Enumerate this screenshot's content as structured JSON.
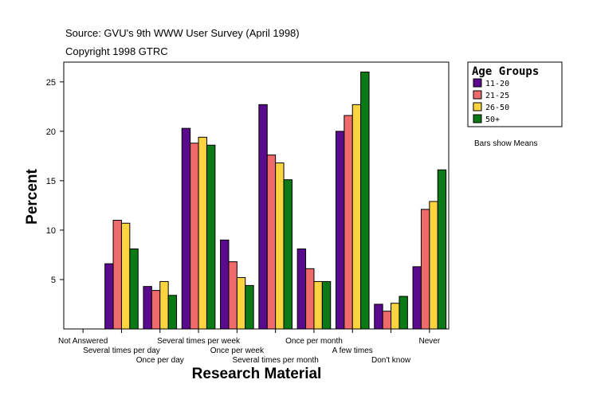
{
  "chart_data": {
    "type": "bar",
    "source_line": "Source: GVU's 9th WWW User Survey (April 1998)",
    "copyright_line": "Copyright 1998 GTRC",
    "xlabel": "Research Material",
    "ylabel": "Percent",
    "ylim": [
      0,
      27
    ],
    "yticks": [
      5,
      10,
      15,
      20,
      25
    ],
    "note": "Bars show Means",
    "legend_title": "Age Groups",
    "legend_position": "right",
    "categories": [
      "Not Answered",
      "Several times per day",
      "Once per day",
      "Several times per week",
      "Once per week",
      "Several times per month",
      "Once per month",
      "A few times",
      "Don't know",
      "Never"
    ],
    "series": [
      {
        "name": "11-20",
        "color": "#5a0a8c",
        "values": [
          0,
          6.6,
          4.3,
          20.3,
          9.0,
          22.7,
          8.1,
          20.0,
          2.5,
          6.3
        ]
      },
      {
        "name": "21-25",
        "color": "#ef6a6a",
        "values": [
          0,
          11.0,
          3.9,
          18.8,
          6.8,
          17.6,
          6.1,
          21.6,
          1.8,
          12.1
        ]
      },
      {
        "name": "26-50",
        "color": "#fcd440",
        "values": [
          0,
          10.7,
          4.8,
          19.4,
          5.2,
          16.8,
          4.8,
          22.7,
          2.6,
          12.9
        ]
      },
      {
        "name": "50+",
        "color": "#0b7a16",
        "values": [
          0,
          8.1,
          3.4,
          18.6,
          4.4,
          15.1,
          4.8,
          26.0,
          3.3,
          16.1
        ]
      }
    ]
  }
}
